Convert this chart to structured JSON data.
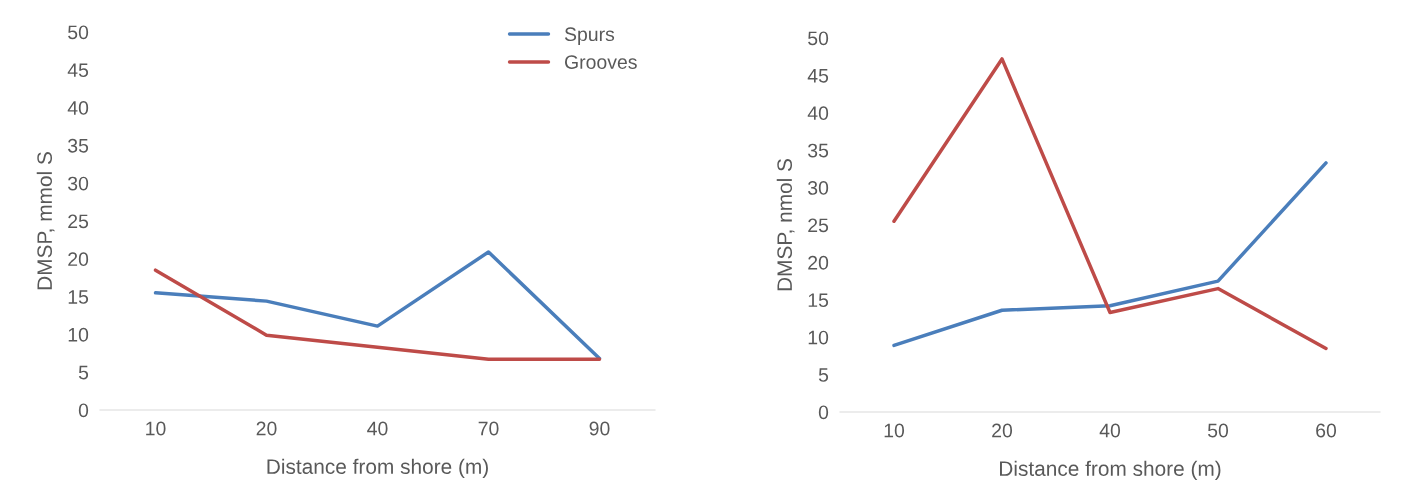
{
  "chart_data": [
    {
      "type": "line",
      "xlabel": "Distance from shore (m)",
      "ylabel": "DMSP, mmol S",
      "categories": [
        "10",
        "20",
        "40",
        "70",
        "90"
      ],
      "ylim": [
        0,
        50
      ],
      "yticks": [
        0,
        5,
        10,
        15,
        20,
        25,
        30,
        35,
        40,
        45,
        50
      ],
      "grid": false,
      "legend": "top right",
      "marker": "none",
      "line_style": "solid",
      "series": [
        {
          "name": "Spurs",
          "color": "#4a7ebb",
          "values": [
            15.5,
            14.4,
            11.1,
            20.9,
            6.8
          ]
        },
        {
          "name": "Grooves",
          "color": "#be4b48",
          "values": [
            18.5,
            9.9,
            8.3,
            6.7,
            6.7
          ]
        }
      ]
    },
    {
      "type": "line",
      "xlabel": "Distance from shore (m)",
      "ylabel": "DMSP, nmol S",
      "categories": [
        "10",
        "20",
        "40",
        "50",
        "60"
      ],
      "ylim": [
        0,
        50
      ],
      "yticks": [
        0,
        5,
        10,
        15,
        20,
        25,
        30,
        35,
        40,
        45,
        50
      ],
      "grid": false,
      "legend": false,
      "marker": "none",
      "line_style": "solid",
      "series": [
        {
          "color": "#4a7ebb",
          "values": [
            8.9,
            13.6,
            14.2,
            17.5,
            33.3
          ]
        },
        {
          "color": "#be4b48",
          "values": [
            25.5,
            47.2,
            13.3,
            16.5,
            8.5
          ]
        }
      ]
    }
  ]
}
